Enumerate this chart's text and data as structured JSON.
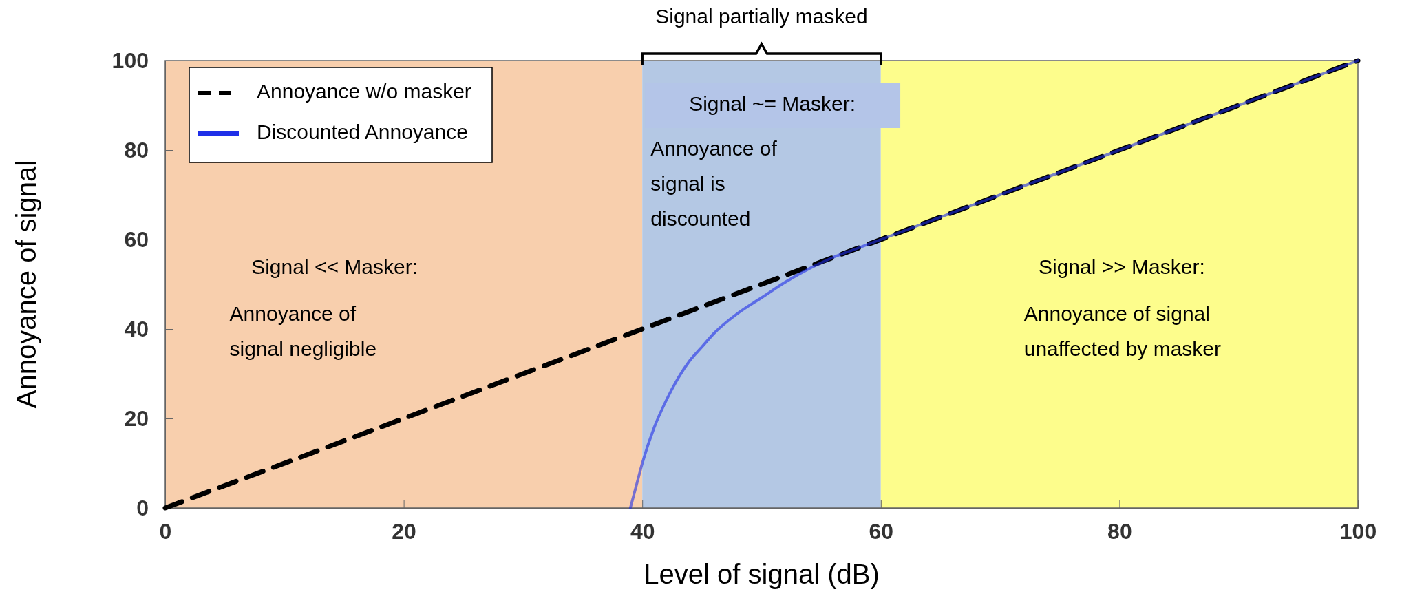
{
  "chart_data": {
    "type": "line",
    "xlabel": "Level of signal (dB)",
    "ylabel": "Annoyance of signal",
    "xlim": [
      0,
      100
    ],
    "ylim": [
      0,
      100
    ],
    "xticks": [
      0,
      20,
      40,
      60,
      80,
      100
    ],
    "yticks": [
      0,
      20,
      40,
      60,
      80,
      100
    ],
    "legend": "top left",
    "grid": false,
    "series": [
      {
        "name": "Annoyance w/o masker",
        "color": "#000000",
        "line_style": "dashed",
        "x": [
          0,
          100
        ],
        "values": [
          0,
          100
        ]
      },
      {
        "name": "Discounted Annoyance",
        "color": "#1f2fe8",
        "line_style": "solid",
        "x": [
          39,
          39.5,
          40,
          41,
          42,
          43,
          44,
          45,
          46,
          48,
          50,
          52,
          54,
          56,
          58,
          60,
          100
        ],
        "values": [
          0,
          5,
          10,
          18,
          24,
          29,
          33,
          36,
          39,
          43.5,
          47,
          50.5,
          53.5,
          56,
          58,
          60,
          100
        ]
      }
    ],
    "bands": [
      {
        "axis": "x",
        "from": 0,
        "to": 40,
        "color": "#f8cfad",
        "label": "Signal << Masker:\nAnnoyance of\nsignal negligible"
      },
      {
        "axis": "x",
        "from": 40,
        "to": 60,
        "color": "#b4c8e4",
        "label": "Signal ~= Masker:\nAnnoyance of\nsignal is\ndiscounted"
      },
      {
        "axis": "x",
        "from": 60,
        "to": 100,
        "color": "#fdfd8c",
        "label": "Signal >> Masker:\nAnnoyance of signal\nunaffected by masker"
      }
    ],
    "annotations": [
      "Signal partially masked"
    ]
  }
}
